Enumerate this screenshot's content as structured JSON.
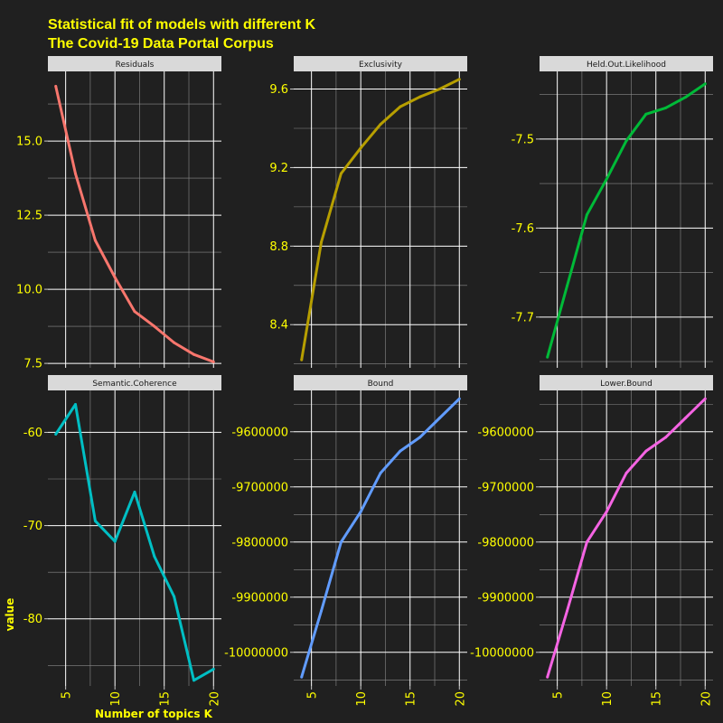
{
  "title_line1": "Statistical fit of models with different K",
  "title_line2": "The Covid-19 Data Portal Corpus",
  "colors": {
    "background": "#202020",
    "text": "#ffff00",
    "strip": "#d9d9d9",
    "grid_major": "#ffffff",
    "grid_minor": "#8a8a8a"
  },
  "chart_data": {
    "type": "line",
    "xlabel": "Number of topics K",
    "ylabel": "value",
    "x": [
      4,
      6,
      8,
      10,
      12,
      14,
      16,
      18,
      20
    ],
    "x_ticks": [
      5,
      10,
      15,
      20
    ],
    "xlim": [
      3.2,
      20.8
    ],
    "grid": true,
    "panels": [
      {
        "name": "Residuals",
        "color": "#f8766d",
        "values": [
          16.85,
          13.9,
          11.65,
          10.4,
          9.25,
          8.75,
          8.2,
          7.8,
          7.55
        ],
        "y_ticks": [
          7.5,
          10.0,
          12.5,
          15.0
        ],
        "y_tick_labels": [
          "7.5",
          "10.0",
          "12.5",
          "15.0"
        ],
        "ylim": [
          7.35,
          17.35
        ]
      },
      {
        "name": "Exclusivity",
        "color": "#b79f00",
        "values": [
          8.22,
          8.82,
          9.17,
          9.3,
          9.42,
          9.51,
          9.56,
          9.6,
          9.65
        ],
        "y_ticks": [
          8.4,
          8.8,
          9.2,
          9.6
        ],
        "y_tick_labels": [
          "8.4",
          "8.8",
          "9.2",
          "9.6"
        ],
        "ylim": [
          8.18,
          9.69
        ]
      },
      {
        "name": "Held.Out.Likelihood",
        "color": "#00ba38",
        "values": [
          -7.745,
          -7.665,
          -7.585,
          -7.545,
          -7.502,
          -7.472,
          -7.465,
          -7.453,
          -7.438
        ],
        "y_ticks": [
          -7.7,
          -7.6,
          -7.5
        ],
        "y_tick_labels": [
          "-7.7",
          "-7.6",
          "-7.5"
        ],
        "ylim": [
          -7.757,
          -7.424
        ]
      },
      {
        "name": "Semantic.Coherence",
        "color": "#00bfc4",
        "values": [
          -60.2,
          -57.0,
          -69.5,
          -71.7,
          -66.4,
          -73.3,
          -77.6,
          -86.6,
          -85.4
        ],
        "y_ticks": [
          -80,
          -70,
          -60
        ],
        "y_tick_labels": [
          "-80",
          "-70",
          "-60"
        ],
        "ylim": [
          -87.2,
          -55.5
        ]
      },
      {
        "name": "Bound",
        "color": "#619cff",
        "values": [
          -10045000,
          -9925000,
          -9800000,
          -9745000,
          -9675000,
          -9635000,
          -9610000,
          -9575000,
          -9540000
        ],
        "y_ticks": [
          -10000000,
          -9900000,
          -9800000,
          -9700000,
          -9600000
        ],
        "y_tick_labels": [
          "-10000000",
          "-9900000",
          "-9800000",
          "-9700000",
          "-9600000"
        ],
        "ylim": [
          -10061000,
          -9525000
        ]
      },
      {
        "name": "Lower.Bound",
        "color": "#f564e3",
        "values": [
          -10045000,
          -9925000,
          -9800000,
          -9745000,
          -9675000,
          -9635000,
          -9610000,
          -9575000,
          -9540000
        ],
        "y_ticks": [
          -10000000,
          -9900000,
          -9800000,
          -9700000,
          -9600000
        ],
        "y_tick_labels": [
          "-10000000",
          "-9900000",
          "-9800000",
          "-9700000",
          "-9600000"
        ],
        "ylim": [
          -10061000,
          -9525000
        ]
      }
    ]
  }
}
